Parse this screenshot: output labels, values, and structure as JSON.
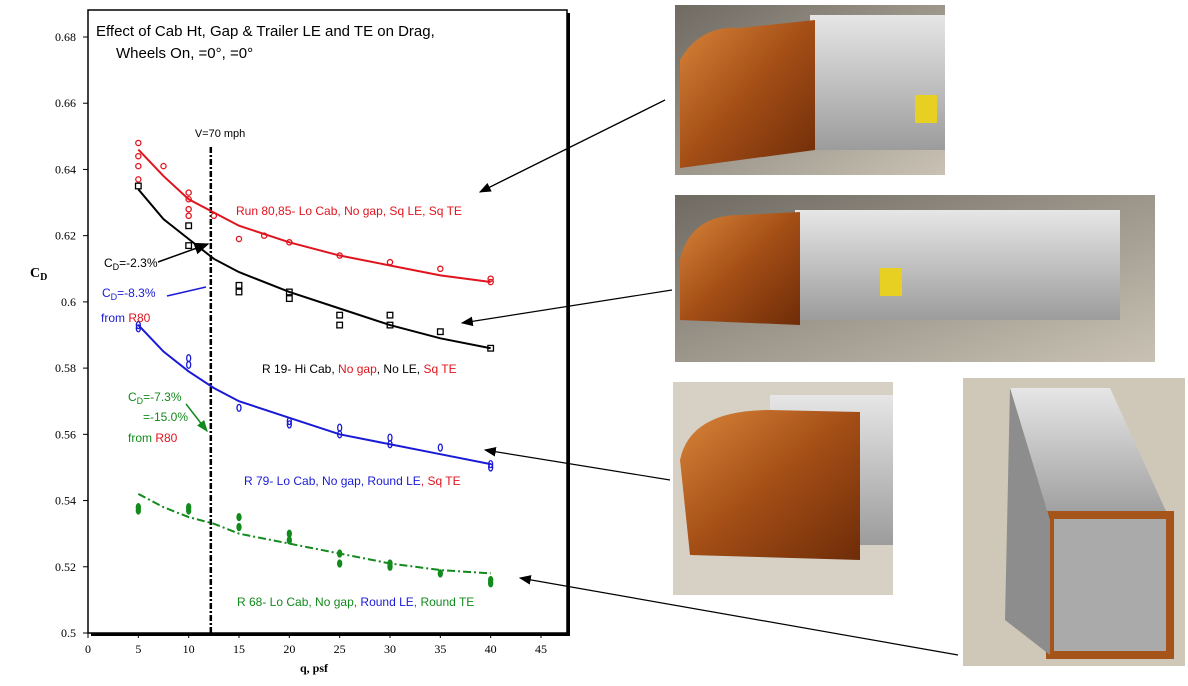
{
  "chart_data": {
    "type": "scatter",
    "title_lines": [
      "Effect of Cab Ht, Gap & Trailer LE and TE on Drag,",
      "Wheels On,   =0°,   =0°"
    ],
    "ylabel": [
      "C",
      "D"
    ],
    "xlabel": "q, psf",
    "xlim": [
      0,
      45
    ],
    "xticks": [
      0,
      5,
      10,
      15,
      20,
      25,
      30,
      35,
      40,
      45
    ],
    "ylim": [
      0.5,
      0.68
    ],
    "yticks": [
      0.5,
      0.52,
      0.54,
      0.56,
      0.58,
      0.6,
      0.62,
      0.64,
      0.66,
      0.68
    ],
    "reference_line": {
      "x": 12.2,
      "label": "V=70 mph",
      "color": "#000000"
    },
    "points": [
      {
        "color": "#e0141e",
        "marker": "circle",
        "x": [
          5,
          5,
          5,
          5,
          7.5,
          10,
          10,
          10,
          10,
          12.5,
          15,
          17.5,
          20,
          25,
          30,
          35,
          40,
          40
        ],
        "values": [
          0.648,
          0.644,
          0.641,
          0.637,
          0.641,
          0.633,
          0.631,
          0.628,
          0.626,
          0.626,
          0.619,
          0.62,
          0.618,
          0.614,
          0.612,
          0.61,
          0.607,
          0.606
        ]
      },
      {
        "color": "#000000",
        "marker": "square",
        "x": [
          5,
          10,
          10,
          15,
          15,
          20,
          20,
          25,
          25,
          30,
          30,
          35,
          40
        ],
        "values": [
          0.635,
          0.623,
          0.617,
          0.605,
          0.603,
          0.603,
          0.601,
          0.596,
          0.593,
          0.596,
          0.593,
          0.591,
          0.586
        ]
      },
      {
        "color": "#1a1ad6",
        "marker": "diamond",
        "x": [
          5,
          5,
          10,
          10,
          15,
          20,
          20,
          25,
          25,
          30,
          30,
          35,
          40,
          40
        ],
        "values": [
          0.593,
          0.592,
          0.583,
          0.581,
          0.568,
          0.564,
          0.563,
          0.562,
          0.56,
          0.559,
          0.557,
          0.556,
          0.551,
          0.55
        ]
      },
      {
        "color": "#138a1d",
        "marker": "filled-diamond",
        "x": [
          5,
          5,
          10,
          10,
          15,
          15,
          20,
          20,
          25,
          25,
          30,
          30,
          35,
          40,
          40
        ],
        "values": [
          0.538,
          0.537,
          0.538,
          0.537,
          0.535,
          0.532,
          0.53,
          0.528,
          0.524,
          0.521,
          0.521,
          0.52,
          0.518,
          0.516,
          0.515
        ]
      }
    ],
    "fits": [
      {
        "color": "#e0141e",
        "dash": "solid",
        "x": [
          5,
          7.5,
          10,
          12.5,
          15,
          20,
          25,
          30,
          35,
          40
        ],
        "values": [
          0.646,
          0.638,
          0.631,
          0.627,
          0.623,
          0.618,
          0.614,
          0.611,
          0.608,
          0.606
        ]
      },
      {
        "color": "#000000",
        "dash": "solid",
        "x": [
          5,
          7.5,
          10,
          12.5,
          15,
          20,
          25,
          30,
          35,
          40
        ],
        "values": [
          0.634,
          0.625,
          0.619,
          0.613,
          0.609,
          0.603,
          0.598,
          0.593,
          0.589,
          0.586
        ]
      },
      {
        "color": "#1a1ad6",
        "dash": "solid",
        "x": [
          5,
          7.5,
          10,
          12.5,
          15,
          20,
          25,
          30,
          35,
          40
        ],
        "values": [
          0.593,
          0.585,
          0.579,
          0.574,
          0.57,
          0.565,
          0.56,
          0.557,
          0.554,
          0.551
        ]
      },
      {
        "color": "#138a1d",
        "dash": "dashdot",
        "x": [
          5,
          7.5,
          10,
          12.5,
          15,
          20,
          25,
          30,
          35,
          40
        ],
        "values": [
          0.542,
          0.538,
          0.535,
          0.533,
          0.53,
          0.527,
          0.524,
          0.521,
          0.519,
          0.518
        ]
      }
    ],
    "annotations": {
      "run80": [
        "Run 80,85- Lo Cab, No gap, Sq LE, Sq TE"
      ],
      "r19": [
        "R 19- Hi Cab,",
        "No gap",
        ", No LE,",
        "Sq TE"
      ],
      "r79": [
        "R 79- Lo Cab, No gap,",
        "Round LE",
        ", Sq TE"
      ],
      "r68": [
        "R 68- Lo Cab, No gap,",
        "Round LE",
        ", Round TE"
      ],
      "d1": [
        "C",
        "D",
        "=-2.3%"
      ],
      "d2": [
        "C",
        "D",
        "=-8.3%",
        "from",
        "R80"
      ],
      "d3": [
        "C",
        "D",
        "=-7.3%",
        "=-15.0%",
        "from",
        "R80"
      ]
    }
  }
}
